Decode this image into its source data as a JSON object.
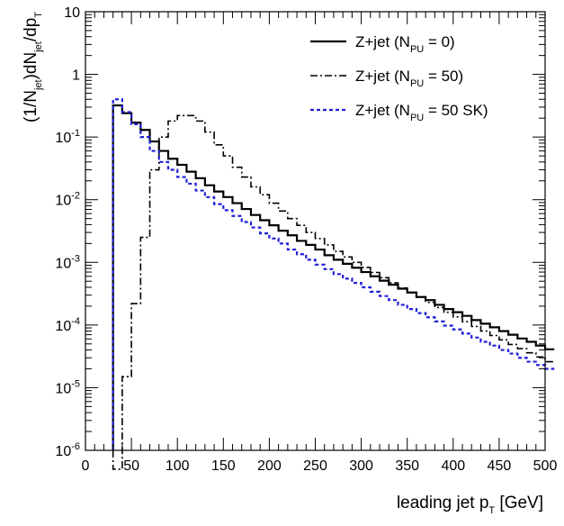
{
  "chart_data": {
    "type": "line",
    "xlabel": "leading jet p_T [GeV]",
    "ylabel": "(1/N_jet)dN_jet/dp_T",
    "xlim": [
      0,
      500
    ],
    "ylim": [
      1e-06,
      10
    ],
    "yscale": "log",
    "grid": false,
    "legend_position": "top-right",
    "x_ticks": [
      0,
      50,
      100,
      150,
      200,
      250,
      300,
      350,
      400,
      450,
      500
    ],
    "x_tick_labels": [
      "0",
      "50",
      "100",
      "150",
      "200",
      "250",
      "300",
      "350",
      "400",
      "450",
      "500"
    ],
    "y_tick_labels": [
      {
        "base": "10",
        "exp": "-6"
      },
      {
        "base": "10",
        "exp": "-5"
      },
      {
        "base": "10",
        "exp": "-4"
      },
      {
        "base": "10",
        "exp": "-3"
      },
      {
        "base": "10",
        "exp": "-2"
      },
      {
        "base": "10",
        "exp": "-1"
      },
      {
        "base": "1",
        "exp": ""
      },
      {
        "base": "10",
        "exp": ""
      }
    ],
    "bin_width": 10,
    "series": [
      {
        "name": "Z+jet (N_PU = 0)",
        "color": "#000000",
        "dash": "solid",
        "bin_edges": [
          30,
          500
        ],
        "values": [
          0.32,
          0.24,
          0.17,
          0.13,
          0.085,
          0.06,
          0.045,
          0.036,
          0.028,
          0.022,
          0.017,
          0.0135,
          0.011,
          0.0088,
          0.0071,
          0.0057,
          0.0047,
          0.0039,
          0.0032,
          0.0027,
          0.0022,
          0.0019,
          0.0016,
          0.0013,
          0.0011,
          0.00095,
          0.00082,
          0.0007,
          0.0006,
          0.00051,
          0.00044,
          0.00038,
          0.00033,
          0.00028,
          0.00025,
          0.00021,
          0.00018,
          0.00016,
          0.00014,
          0.00012,
          0.000105,
          9.2e-05,
          8e-05,
          7e-05,
          6.1e-05,
          5.4e-05,
          4.7e-05,
          4.1e-05
        ]
      },
      {
        "name": "Z+jet (N_PU = 50)",
        "color": "#000000",
        "dash": "dashdot",
        "bin_edges": [
          30,
          500
        ],
        "values": [
          5e-07,
          1.5e-05,
          0.00022,
          0.0025,
          0.03,
          0.1,
          0.18,
          0.22,
          0.22,
          0.18,
          0.12,
          0.075,
          0.05,
          0.033,
          0.023,
          0.016,
          0.012,
          0.0088,
          0.0066,
          0.005,
          0.0039,
          0.003,
          0.0024,
          0.0019,
          0.0015,
          0.00122,
          0.001,
          0.00083,
          0.00069,
          0.00057,
          0.00047,
          0.00039,
          0.00033,
          0.00028,
          0.00023,
          0.00019,
          0.00016,
          0.000135,
          0.000113,
          9.5e-05,
          8e-05,
          6.8e-05,
          5.8e-05,
          4.9e-05,
          4.2e-05,
          3.6e-05,
          3.1e-05,
          2.6e-05
        ]
      },
      {
        "name": "Z+jet (N_PU = 50 SK)",
        "color": "#1f1fd8",
        "dash": "dotted",
        "bin_edges": [
          30,
          500
        ],
        "values": [
          0.4,
          0.25,
          0.16,
          0.1,
          0.06,
          0.04,
          0.03,
          0.023,
          0.018,
          0.014,
          0.011,
          0.0085,
          0.0068,
          0.0055,
          0.0044,
          0.0036,
          0.0029,
          0.0024,
          0.002,
          0.0016,
          0.00135,
          0.0011,
          0.00092,
          0.00078,
          0.00065,
          0.00055,
          0.00047,
          0.0004,
          0.00034,
          0.00029,
          0.00025,
          0.00021,
          0.00018,
          0.000155,
          0.000133,
          0.000114,
          9.8e-05,
          8.5e-05,
          7.3e-05,
          6.3e-05,
          5.4e-05,
          4.7e-05,
          4e-05,
          3.5e-05,
          3e-05,
          2.6e-05,
          2.3e-05,
          2e-05
        ]
      }
    ]
  }
}
